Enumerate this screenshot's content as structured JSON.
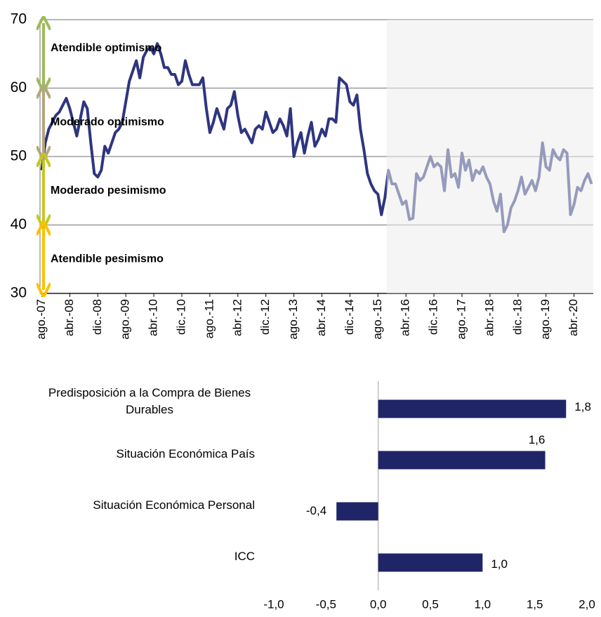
{
  "chart_data": [
    {
      "type": "line",
      "categories": [
        "ago.-07",
        null,
        null,
        null,
        null,
        null,
        null,
        null,
        "abr.-08",
        null,
        null,
        null,
        null,
        null,
        null,
        null,
        "dic.-08",
        null,
        null,
        null,
        null,
        null,
        null,
        null,
        "ago.-09",
        null,
        null,
        null,
        null,
        null,
        null,
        null,
        "abr.-10",
        null,
        null,
        null,
        null,
        null,
        null,
        null,
        "dic.-10",
        null,
        null,
        null,
        null,
        null,
        null,
        null,
        "ago.-11",
        null,
        null,
        null,
        null,
        null,
        null,
        null,
        "abr.-12",
        null,
        null,
        null,
        null,
        null,
        null,
        null,
        "dic.-12",
        null,
        null,
        null,
        null,
        null,
        null,
        null,
        "ago.-13",
        null,
        null,
        null,
        null,
        null,
        null,
        null,
        "abr.-14",
        null,
        null,
        null,
        null,
        null,
        null,
        null,
        "dic.-14",
        null,
        null,
        null,
        null,
        null,
        null,
        null,
        "ago.-15",
        null,
        null,
        null,
        null,
        null,
        null,
        null,
        "abr.-16",
        null,
        null,
        null,
        null,
        null,
        null,
        null,
        "dic.-16",
        null,
        null,
        null,
        null,
        null,
        null,
        null,
        "ago.-17",
        null,
        null,
        null,
        null,
        null,
        null,
        null,
        "abr.-18",
        null,
        null,
        null,
        null,
        null,
        null,
        null,
        "dic.-18",
        null,
        null,
        null,
        null,
        null,
        null,
        null,
        "ago.-19",
        null,
        null,
        null,
        null,
        null,
        null,
        null,
        "abr.-20",
        null,
        null,
        null,
        null,
        null
      ],
      "values": [
        48,
        52,
        54,
        55,
        56,
        56.5,
        57.5,
        58.5,
        57,
        55,
        53,
        55.5,
        58,
        57,
        52,
        47.5,
        47,
        48,
        51.5,
        50.5,
        52,
        53.5,
        54,
        55,
        58,
        61,
        62.5,
        64,
        61.5,
        64.5,
        65.5,
        66,
        65,
        66.5,
        65,
        63,
        63,
        62,
        62,
        60.5,
        61,
        64,
        62,
        60.5,
        60.5,
        60.5,
        61.5,
        57,
        53.5,
        55,
        57,
        55.5,
        54,
        57,
        57.5,
        59.5,
        56,
        53.5,
        54,
        53,
        52,
        54,
        54.5,
        54,
        56.5,
        55,
        53.5,
        54,
        55.5,
        54.5,
        53,
        57,
        50,
        52,
        53.5,
        50.5,
        53,
        55,
        51.5,
        52.5,
        54,
        53,
        55.5,
        55.5,
        55,
        61.5,
        61,
        60.5,
        58,
        57.5,
        59,
        54,
        51,
        47.5,
        46,
        45,
        44.5,
        41.5,
        44,
        48,
        46,
        46,
        44.5,
        43,
        43.5,
        40.8,
        41,
        47.5,
        46.5,
        47,
        48.5,
        50,
        48.5,
        49,
        48.5,
        45,
        51,
        47,
        47.5,
        45.5,
        50.5,
        48,
        49.5,
        46.5,
        48,
        47.5,
        48.5,
        47,
        46,
        43.5,
        42,
        44.5,
        39,
        40,
        42.5,
        43.5,
        45,
        47,
        44.5,
        45.5,
        46.5,
        45,
        47,
        52,
        48.5,
        48,
        51,
        50,
        49.5,
        51,
        50.5,
        41.5,
        43,
        45.5,
        45,
        46.5,
        47.5,
        46
      ],
      "color": "#2e3580",
      "ylim": [
        30,
        70
      ],
      "yticks": [
        30,
        40,
        50,
        60,
        70
      ],
      "grid": true,
      "shade_start_index": 99,
      "shade_color": "#ececec",
      "bands": [
        {
          "label": "Atendible optimismo",
          "range": [
            60,
            70
          ],
          "color": "#9bbb59"
        },
        {
          "label": "Moderado optimismo",
          "range": [
            50,
            60
          ],
          "color": "#b3a57e"
        },
        {
          "label": "Moderado pesimismo",
          "range": [
            40,
            50
          ],
          "color": "#c4c81e"
        },
        {
          "label": "Atendible pesimismo",
          "range": [
            30,
            40
          ],
          "color": "#ffc000"
        }
      ]
    },
    {
      "type": "hbar",
      "categories": [
        "Predisposición a la Compra de Bienes Durables",
        "Situación Económica País",
        "Situación Económica Personal",
        "ICC"
      ],
      "values": [
        1.8,
        1.6,
        -0.4,
        1.0
      ],
      "value_labels": [
        "1,8",
        "1,6",
        "-0,4",
        "1,0"
      ],
      "color": "#1f2566",
      "xlim": [
        -1,
        2
      ],
      "xticks": [
        {
          "value": -1,
          "label": "-1,0"
        },
        {
          "value": -0.5,
          "label": "-0,5"
        },
        {
          "value": 0,
          "label": "0,0"
        },
        {
          "value": 0.5,
          "label": "0,5"
        },
        {
          "value": 1,
          "label": "1,0"
        },
        {
          "value": 1.5,
          "label": "1,5"
        },
        {
          "value": 2,
          "label": "2,0"
        }
      ]
    }
  ]
}
